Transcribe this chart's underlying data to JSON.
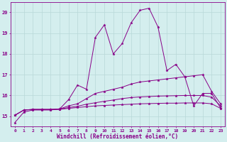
{
  "xlabel": "Windchill (Refroidissement éolien,°C)",
  "ylabel": "",
  "xlim": [
    -0.5,
    23.5
  ],
  "ylim": [
    14.5,
    20.5
  ],
  "yticks": [
    15,
    16,
    17,
    18,
    19,
    20
  ],
  "xticks": [
    0,
    1,
    2,
    3,
    4,
    5,
    6,
    7,
    8,
    9,
    10,
    11,
    12,
    13,
    14,
    15,
    16,
    17,
    18,
    19,
    20,
    21,
    22,
    23
  ],
  "bg_color": "#d4eeee",
  "line_color": "#880088",
  "grid_color": "#b8d8d8",
  "curves": [
    {
      "x": [
        0,
        1,
        2,
        3,
        4,
        5,
        6,
        7,
        8,
        9,
        10,
        11,
        12,
        13,
        14,
        15,
        16,
        17,
        18,
        19,
        20,
        21,
        22,
        23
      ],
      "y": [
        14.7,
        15.2,
        15.3,
        15.3,
        15.3,
        15.35,
        15.8,
        16.5,
        16.3,
        18.8,
        19.4,
        18.0,
        18.5,
        19.5,
        20.1,
        20.2,
        19.3,
        17.2,
        17.5,
        16.9,
        15.5,
        16.1,
        16.1,
        15.4
      ]
    },
    {
      "x": [
        0,
        1,
        2,
        3,
        4,
        5,
        6,
        7,
        8,
        9,
        10,
        11,
        12,
        13,
        14,
        15,
        16,
        17,
        18,
        19,
        20,
        21,
        22,
        23
      ],
      "y": [
        15.05,
        15.3,
        15.33,
        15.33,
        15.33,
        15.35,
        15.5,
        15.6,
        15.85,
        16.1,
        16.2,
        16.3,
        16.4,
        16.55,
        16.65,
        16.7,
        16.75,
        16.8,
        16.85,
        16.9,
        16.95,
        17.0,
        16.2,
        15.6
      ]
    },
    {
      "x": [
        0,
        1,
        2,
        3,
        4,
        5,
        6,
        7,
        8,
        9,
        10,
        11,
        12,
        13,
        14,
        15,
        16,
        17,
        18,
        19,
        20,
        21,
        22,
        23
      ],
      "y": [
        15.05,
        15.3,
        15.33,
        15.33,
        15.33,
        15.34,
        15.42,
        15.48,
        15.58,
        15.65,
        15.72,
        15.78,
        15.85,
        15.9,
        15.93,
        15.95,
        15.97,
        15.98,
        15.99,
        16.0,
        16.0,
        16.0,
        15.92,
        15.5
      ]
    },
    {
      "x": [
        0,
        1,
        2,
        3,
        4,
        5,
        6,
        7,
        8,
        9,
        10,
        11,
        12,
        13,
        14,
        15,
        16,
        17,
        18,
        19,
        20,
        21,
        22,
        23
      ],
      "y": [
        15.05,
        15.3,
        15.32,
        15.32,
        15.32,
        15.33,
        15.38,
        15.42,
        15.46,
        15.5,
        15.52,
        15.54,
        15.56,
        15.58,
        15.6,
        15.61,
        15.62,
        15.63,
        15.63,
        15.64,
        15.64,
        15.64,
        15.6,
        15.38
      ]
    }
  ]
}
